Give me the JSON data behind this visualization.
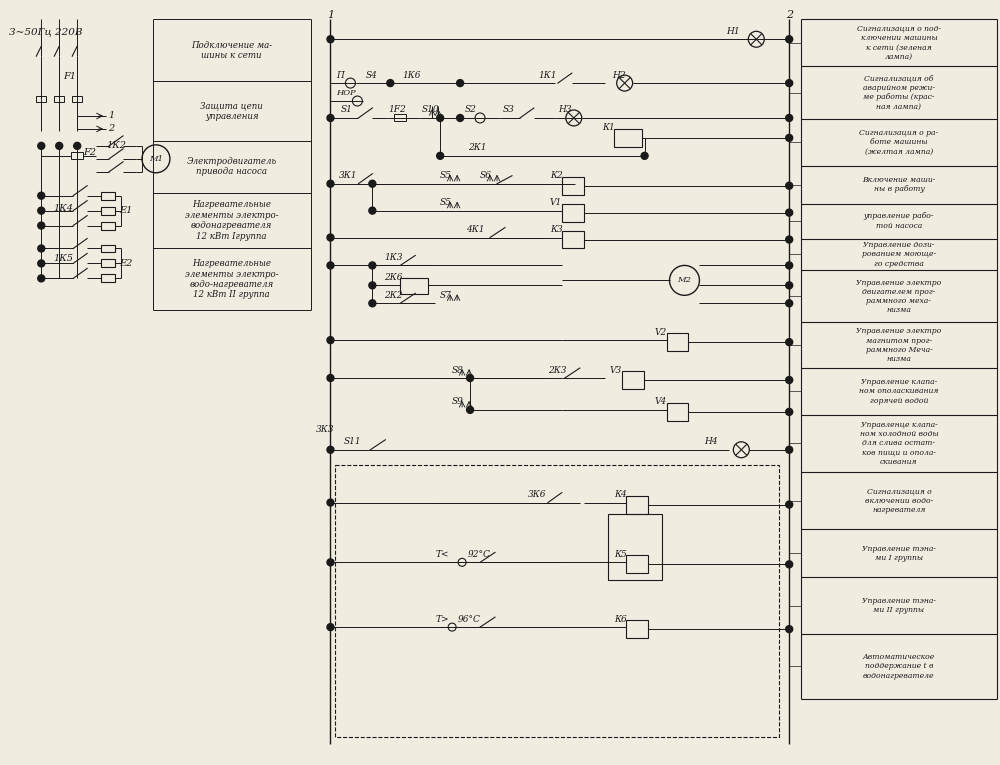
{
  "bg_color": "#f0ece0",
  "line_color": "#1a1a1a",
  "fig_width": 10.0,
  "fig_height": 7.65,
  "supply_text": "3~50Гц 220В",
  "left_table_labels": [
    "Подключение ма-\nшины к сети",
    "Защита цепи\nуправления",
    "Электродвигатель\nпривода насоса",
    "Нагревательные\nэлементы электро-\nводонагревателя\n12 кВт Iгруппа",
    "Нагревательные\nэлементы электро-\nводо-нагревателя\n12 кВт II группа"
  ],
  "right_table_labels": [
    "Сигнализация о под-\nключении машины\nк сети (зеленая\nлампа)",
    "Сигнализация об\nаварийном режи-\nме работы (крас-\nная лампа)",
    "Сигнализация о ра-\nботе машины\n(желтая лампа)",
    "Включение маши-\nны в работу",
    "управление рабо-\nтой насоса",
    "Управление дози-\nрованием моюще-\nго средства",
    "Управление электро\nдвигателем прог-\nраммного меха-\nнизма",
    "Управление электро\nмагнитом прог-\nраммного Меча-\nнизма",
    "Управление клапа-\nном ополаскивания\nгорячей водой",
    "Управленце клапа-\nном холодной воды\nдля слива остат-\nков пищи и опола-\nскивания",
    "Сигнализация о\nвключении водо-\nнагревателя",
    "Управление тэна-\nми I группы",
    "Управление тэна-\nми II группы",
    "Автоматическое\nподдержание t в\nводонагревателе"
  ]
}
